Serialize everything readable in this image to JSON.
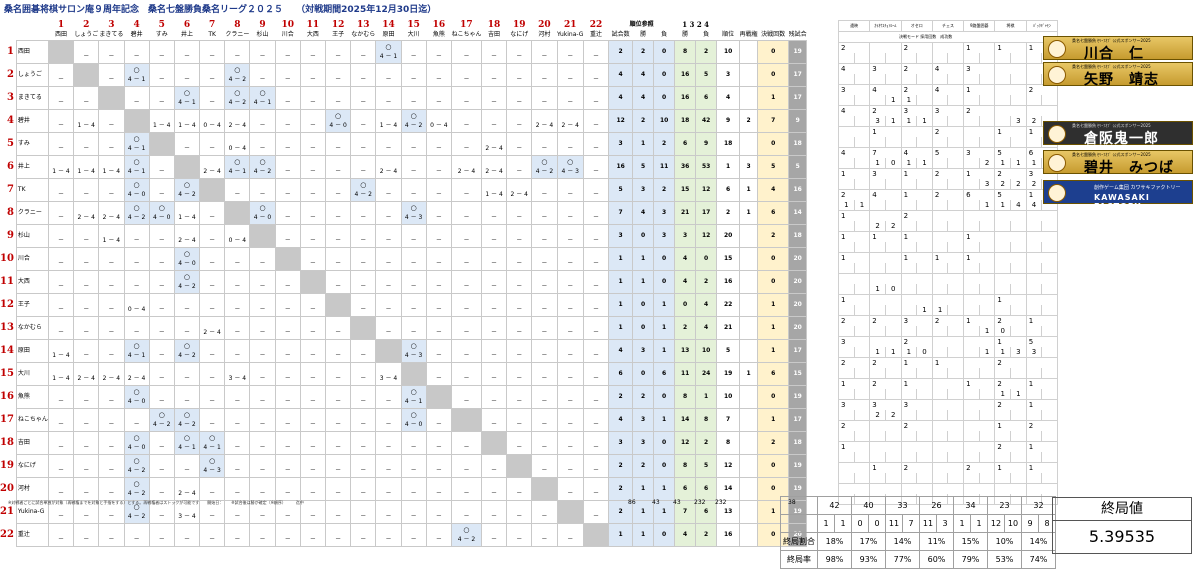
{
  "title": "桑名囲碁将棋サロン庵９周年記念　桑名七盤勝負桑名リーグ２０２５",
  "period": "（対戦期間2025年12月30日迄）",
  "players": [
    "西田",
    "しょうご",
    "まきてる",
    "碧井",
    "すみ",
    "井上",
    "TK",
    "クラニー",
    "杉山",
    "川合",
    "大西",
    "王子",
    "なかむら",
    "原田",
    "大川",
    "魚熊",
    "ねこちゃん",
    "吉田",
    "なにげ",
    "河村",
    "Yukina-G",
    "重辻"
  ],
  "headers": {
    "rank_ref": "順位参照",
    "team_score": "対局スコア",
    "individual": "個別競技勝数",
    "games": "試合数",
    "win": "勝",
    "lose": "負",
    "rank": "順位",
    "rematch": "再戦権",
    "final_count": "決戦回数",
    "remaining": "残試合",
    "ref1": "1",
    "ref2": "3",
    "ref3": "2",
    "ref4": "4"
  },
  "rows": [
    {
      "games": "2",
      "w": "2",
      "l": "0",
      "iw": "8",
      "il": "2",
      "rank": "10",
      "re": "",
      "fin": "0",
      "zan": "19"
    },
    {
      "games": "4",
      "w": "4",
      "l": "0",
      "iw": "16",
      "il": "5",
      "rank": "3",
      "re": "",
      "fin": "0",
      "zan": "17"
    },
    {
      "games": "4",
      "w": "4",
      "l": "0",
      "iw": "16",
      "il": "6",
      "rank": "4",
      "re": "",
      "fin": "1",
      "zan": "17"
    },
    {
      "games": "12",
      "w": "2",
      "l": "10",
      "iw": "18",
      "il": "42",
      "rank": "9",
      "re": "2",
      "fin": "7",
      "zan": "9"
    },
    {
      "games": "3",
      "w": "1",
      "l": "2",
      "iw": "6",
      "il": "9",
      "rank": "18",
      "re": "",
      "fin": "0",
      "zan": "18"
    },
    {
      "games": "16",
      "w": "5",
      "l": "11",
      "iw": "36",
      "il": "53",
      "rank": "1",
      "re": "3",
      "fin": "5",
      "zan": "5"
    },
    {
      "games": "5",
      "w": "3",
      "l": "2",
      "iw": "15",
      "il": "12",
      "rank": "6",
      "re": "1",
      "fin": "4",
      "zan": "16"
    },
    {
      "games": "7",
      "w": "4",
      "l": "3",
      "iw": "21",
      "il": "17",
      "rank": "2",
      "re": "1",
      "fin": "6",
      "zan": "14"
    },
    {
      "games": "3",
      "w": "0",
      "l": "3",
      "iw": "3",
      "il": "12",
      "rank": "20",
      "re": "",
      "fin": "2",
      "zan": "18"
    },
    {
      "games": "1",
      "w": "1",
      "l": "0",
      "iw": "4",
      "il": "0",
      "rank": "15",
      "re": "",
      "fin": "0",
      "zan": "20"
    },
    {
      "games": "1",
      "w": "1",
      "l": "0",
      "iw": "4",
      "il": "2",
      "rank": "16",
      "re": "",
      "fin": "0",
      "zan": "20"
    },
    {
      "games": "1",
      "w": "0",
      "l": "1",
      "iw": "0",
      "il": "4",
      "rank": "22",
      "re": "",
      "fin": "1",
      "zan": "20"
    },
    {
      "games": "1",
      "w": "0",
      "l": "1",
      "iw": "2",
      "il": "4",
      "rank": "21",
      "re": "",
      "fin": "1",
      "zan": "20"
    },
    {
      "games": "4",
      "w": "3",
      "l": "1",
      "iw": "13",
      "il": "10",
      "rank": "5",
      "re": "",
      "fin": "1",
      "zan": "17"
    },
    {
      "games": "6",
      "w": "0",
      "l": "6",
      "iw": "11",
      "il": "24",
      "rank": "19",
      "re": "1",
      "fin": "6",
      "zan": "15"
    },
    {
      "games": "2",
      "w": "2",
      "l": "0",
      "iw": "8",
      "il": "1",
      "rank": "10",
      "re": "",
      "fin": "0",
      "zan": "19"
    },
    {
      "games": "4",
      "w": "3",
      "l": "1",
      "iw": "14",
      "il": "8",
      "rank": "7",
      "re": "",
      "fin": "1",
      "zan": "17"
    },
    {
      "games": "3",
      "w": "3",
      "l": "0",
      "iw": "12",
      "il": "2",
      "rank": "8",
      "re": "",
      "fin": "2",
      "zan": "18"
    },
    {
      "games": "2",
      "w": "2",
      "l": "0",
      "iw": "8",
      "il": "5",
      "rank": "12",
      "re": "",
      "fin": "0",
      "zan": "19"
    },
    {
      "games": "2",
      "w": "1",
      "l": "1",
      "iw": "6",
      "il": "6",
      "rank": "14",
      "re": "",
      "fin": "0",
      "zan": "19"
    },
    {
      "games": "2",
      "w": "1",
      "l": "1",
      "iw": "7",
      "il": "6",
      "rank": "13",
      "re": "",
      "fin": "1",
      "zan": "19"
    },
    {
      "games": "1",
      "w": "1",
      "l": "0",
      "iw": "4",
      "il": "2",
      "rank": "16",
      "re": "",
      "fin": "0",
      "zan": "20"
    }
  ],
  "totals": {
    "games": "86",
    "w": "43",
    "l": "43",
    "iw": "232",
    "il": "232",
    "fin": "38"
  },
  "sponsor_headers": [
    "遠映",
    "ｶﾗｵｹｽﾁｮｧﾙｰﾑ",
    "オセロ",
    "チェス",
    "9路盤囲碁",
    "将棋",
    "ﾊﾞｯｸｷﾞｬﾓﾝ"
  ],
  "sponsor_sub": "決戦モード 採用回数　成功数",
  "summary": {
    "counts": [
      "42",
      "40",
      "33",
      "26",
      "34",
      "23",
      "32"
    ],
    "sub": [
      "1",
      "1",
      "0",
      "0",
      "11",
      "7",
      "11",
      "3",
      "1",
      "1",
      "12",
      "10",
      "9",
      "8"
    ],
    "final_ratio_label": "終局割合",
    "final_ratio": [
      "18%",
      "17%",
      "14%",
      "11%",
      "15%",
      "10%",
      "14%"
    ],
    "final_rate_label": "終局率",
    "final_rate": [
      "98%",
      "93%",
      "77%",
      "60%",
      "79%",
      "53%",
      "74%"
    ]
  },
  "final_value": {
    "label": "終局値",
    "value": "5.39535"
  },
  "sponsors": [
    {
      "sub": "桑名七盤勝負 ｾﾘｰﾌｵﾌﾞ 公式スポンサー2025",
      "name": "川合　仁"
    },
    {
      "sub": "桑名七盤勝負 ｾﾘｰﾌｵﾌﾞ 公式スポンサー2025",
      "name": "矢野　靖志"
    },
    {
      "sub": "桑名七盤勝負 ｾﾘｰﾌｵﾌﾞ 公式スポンサー2025",
      "name": "倉阪鬼一郎"
    },
    {
      "sub": "桑名七盤勝負 ｾﾘｰﾌｵﾌﾞ 公式スポンサー2025",
      "name": "碧井　みつば"
    },
    {
      "sub": "創作ゲーム集団 カワサキファクトリー",
      "name": "KAWASAKI FACTORY"
    }
  ],
  "footnote": "※対戦者ごとに試合単独が対象（再戦権までを対象と手指をする）とする。再戦権者はストックが可能です　　開始日：　　※試合後は勝が確定（※順序）　　　迄中",
  "colors": {
    "title": "#1f3a8a",
    "red": "#c00000",
    "win": "#dce8f6",
    "diag": "#c8c8c8",
    "ind": "#e4f1d8",
    "fin": "#fff2cc",
    "zan": "#a6a6a6"
  }
}
